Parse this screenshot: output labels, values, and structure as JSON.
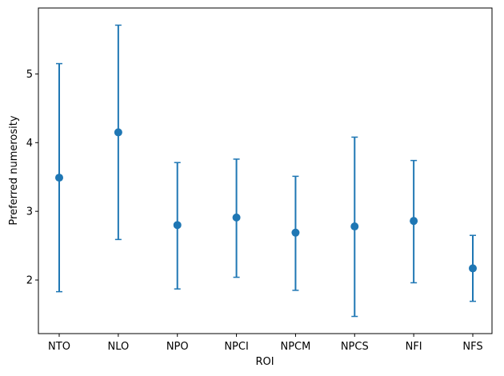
{
  "chart_data": {
    "type": "errorbar",
    "title": "",
    "xlabel": "ROI",
    "ylabel": "Preferred numerosity",
    "categories": [
      "NTO",
      "NLO",
      "NPO",
      "NPCI",
      "NPCM",
      "NPCS",
      "NFI",
      "NFS"
    ],
    "series": [
      {
        "values": [
          3.49,
          4.15,
          2.8,
          2.91,
          2.69,
          2.78,
          2.86,
          2.17
        ],
        "lower": [
          1.83,
          2.59,
          1.87,
          2.04,
          1.85,
          1.47,
          1.96,
          1.69
        ],
        "upper": [
          5.15,
          5.71,
          3.71,
          3.76,
          3.51,
          4.08,
          3.74,
          2.65
        ],
        "color": "#1f77b4"
      }
    ],
    "ylim": [
      1.22,
      5.96
    ],
    "yticks": [
      2,
      3,
      4,
      5
    ],
    "grid": false
  }
}
